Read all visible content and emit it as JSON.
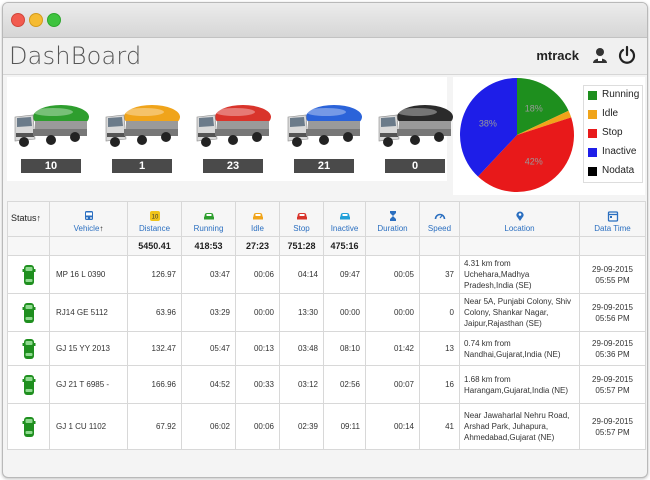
{
  "window": {
    "title": "DashBoard"
  },
  "header": {
    "user": "mtrack"
  },
  "summary": [
    {
      "status": "Running",
      "count": "10",
      "color": "#2e9e2e"
    },
    {
      "status": "Idle",
      "count": "1",
      "color": "#f0a41a"
    },
    {
      "status": "Stop",
      "count": "23",
      "color": "#d9342b"
    },
    {
      "status": "Inactive",
      "count": "21",
      "color": "#2b63d9"
    },
    {
      "status": "Nodata",
      "count": "0",
      "color": "#2b2b2b"
    }
  ],
  "chart_data": {
    "type": "pie",
    "slices": [
      {
        "label": "Running",
        "value": 18,
        "color": "#1e8f1e"
      },
      {
        "label": "Idle",
        "value": 2,
        "color": "#f0a41a"
      },
      {
        "label": "Stop",
        "value": 42,
        "color": "#e8191a"
      },
      {
        "label": "Inactive",
        "value": 38,
        "color": "#1e1ee8"
      },
      {
        "label": "Nodata",
        "value": 0,
        "color": "#000000"
      }
    ],
    "slice_labels": [
      "38%",
      "42%",
      "18%"
    ],
    "legend_position": "right"
  },
  "legend": [
    {
      "label": "Running",
      "color": "#1e8f1e"
    },
    {
      "label": "Idle",
      "color": "#f0a41a"
    },
    {
      "label": "Stop",
      "color": "#e8191a"
    },
    {
      "label": "Inactive",
      "color": "#1e1ee8"
    },
    {
      "label": "Nodata",
      "color": "#000000"
    }
  ],
  "table": {
    "headers": {
      "status": "Status",
      "vehicle": "Vehicle",
      "distance": "Distance",
      "running": "Running",
      "idle": "Idle",
      "stop": "Stop",
      "inactive": "Inactive",
      "duration": "Duration",
      "speed": "Speed",
      "location": "Location",
      "datetime": "Data Time"
    },
    "totals": {
      "distance": "5450.41",
      "running": "418:53",
      "idle": "27:23",
      "stop": "751:28",
      "inactive": "475:16"
    },
    "rows": [
      {
        "vehicle": "MP 16 L 0390",
        "distance": "126.97",
        "running": "03:47",
        "idle": "00:06",
        "stop": "04:14",
        "inactive": "09:47",
        "duration": "00:05",
        "speed": "37",
        "location": "4.31 km from Uchehara,Madhya Pradesh,India (SE)",
        "date": "29-09-2015",
        "time": "05:55 PM"
      },
      {
        "vehicle": "RJ14 GE 5112",
        "distance": "63.96",
        "running": "03:29",
        "idle": "00:00",
        "stop": "13:30",
        "inactive": "00:00",
        "duration": "00:00",
        "speed": "0",
        "location": "Near 5A, Punjabi Colony, Shiv Colony, Shankar Nagar, Jaipur,Rajasthan (SE)",
        "date": "29-09-2015",
        "time": "05:56 PM"
      },
      {
        "vehicle": "GJ 15 YY 2013",
        "distance": "132.47",
        "running": "05:47",
        "idle": "00:13",
        "stop": "03:48",
        "inactive": "08:10",
        "duration": "01:42",
        "speed": "13",
        "location": "0.74 km from Nandhai,Gujarat,India (NE)",
        "date": "29-09-2015",
        "time": "05:36 PM"
      },
      {
        "vehicle": "GJ 21 T 6985  -",
        "distance": "166.96",
        "running": "04:52",
        "idle": "00:33",
        "stop": "03:12",
        "inactive": "02:56",
        "duration": "00:07",
        "speed": "16",
        "location": "1.68 km from Harangam,Gujarat,India (NE)",
        "date": "29-09-2015",
        "time": "05:57 PM"
      },
      {
        "vehicle": "GJ 1 CU 1102",
        "distance": "67.92",
        "running": "06:02",
        "idle": "00:06",
        "stop": "02:39",
        "inactive": "09:11",
        "duration": "00:14",
        "speed": "41",
        "location": "Near Jawaharlal Nehru Road, Arshad Park, Juhapura, Ahmedabad,Gujarat (NE)",
        "date": "29-09-2015",
        "time": "05:57 PM"
      }
    ]
  }
}
